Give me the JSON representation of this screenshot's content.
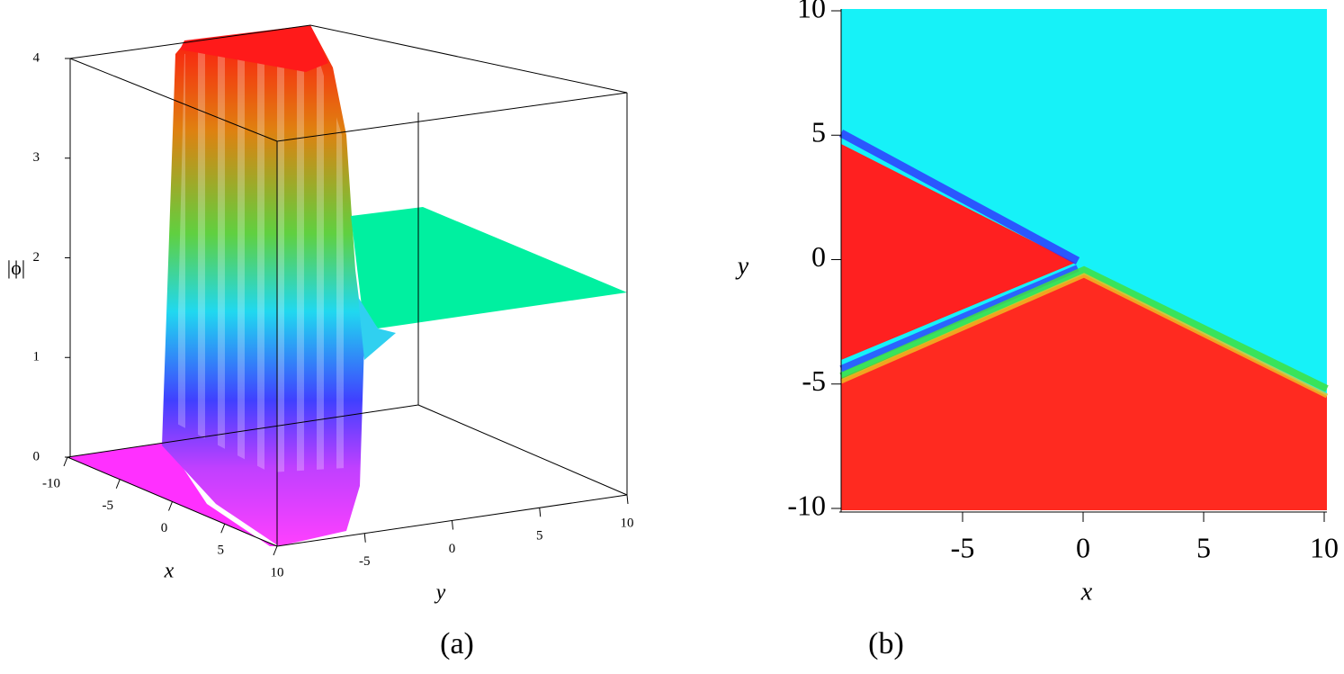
{
  "chart_data": [
    {
      "type": "surface3d",
      "panel_label": "(a)",
      "xlabel": "x",
      "ylabel": "y",
      "zlabel": "|ϕ|",
      "xlim": [
        -10,
        10
      ],
      "ylim": [
        -10,
        10
      ],
      "zlim": [
        0,
        4
      ],
      "xticks": [
        -10,
        -5,
        0,
        5,
        10
      ],
      "yticks": [
        -5,
        0,
        5,
        10
      ],
      "zticks": [
        0,
        1,
        2,
        3,
        4
      ]
    },
    {
      "type": "density",
      "panel_label": "(b)",
      "xlabel": "x",
      "ylabel": "y",
      "xlim": [
        -10,
        10
      ],
      "ylim": [
        -10,
        10
      ],
      "xticks": [
        -5,
        0,
        5,
        10
      ],
      "yticks": [
        -10,
        -5,
        0,
        5,
        10
      ]
    }
  ]
}
